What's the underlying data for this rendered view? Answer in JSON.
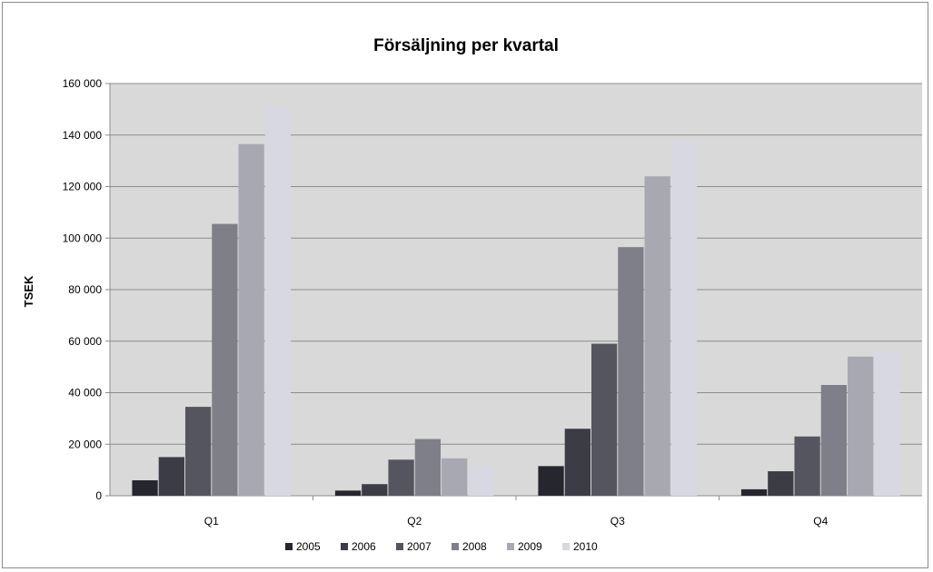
{
  "chart_data": {
    "type": "bar",
    "title": "Försäljning per kvartal",
    "xlabel": "",
    "ylabel": "TSEK",
    "categories": [
      "Q1",
      "Q2",
      "Q3",
      "Q4"
    ],
    "ylim": [
      0,
      160000
    ],
    "yticks": [
      0,
      20000,
      40000,
      60000,
      80000,
      100000,
      120000,
      140000,
      160000
    ],
    "ytick_labels": [
      "0",
      "20 000",
      "40 000",
      "60 000",
      "80 000",
      "100 000",
      "120 000",
      "140 000",
      "160 000"
    ],
    "grid": true,
    "legend_position": "bottom",
    "plot_background": "#d9d9d9",
    "series": [
      {
        "name": "2005",
        "color": "#26262e",
        "values": [
          6000,
          2000,
          11500,
          2500
        ]
      },
      {
        "name": "2006",
        "color": "#3c3c46",
        "values": [
          15000,
          4500,
          26000,
          9500
        ]
      },
      {
        "name": "2007",
        "color": "#55555f",
        "values": [
          34500,
          14000,
          59000,
          23000
        ]
      },
      {
        "name": "2008",
        "color": "#7f7f89",
        "values": [
          105500,
          22000,
          96500,
          43000
        ]
      },
      {
        "name": "2009",
        "color": "#a8a8b2",
        "values": [
          136500,
          14500,
          124000,
          54000
        ]
      },
      {
        "name": "2010",
        "color": "#d8d8e2",
        "values": [
          150500,
          11500,
          137500,
          56000
        ]
      }
    ]
  }
}
